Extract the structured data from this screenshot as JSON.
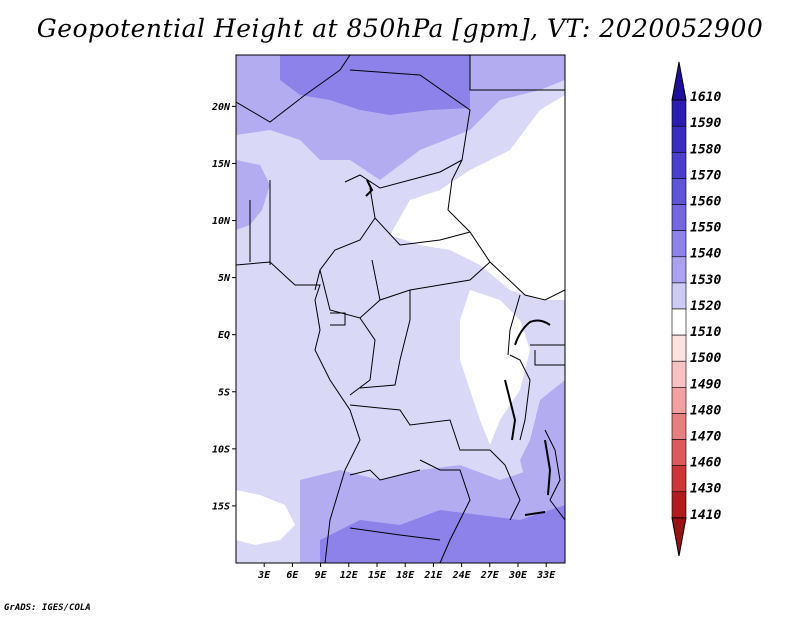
{
  "title": "Geopotential Height at 850hPa [gpm], VT: 2020052900",
  "credit": "GrADS: IGES/COLA",
  "map": {
    "lat_labels": [
      {
        "lat": 20,
        "text": "20N"
      },
      {
        "lat": 15,
        "text": "15N"
      },
      {
        "lat": 10,
        "text": "10N"
      },
      {
        "lat": 5,
        "text": "5N"
      },
      {
        "lat": 0,
        "text": "EQ"
      },
      {
        "lat": -5,
        "text": "5S"
      },
      {
        "lat": -10,
        "text": "10S"
      },
      {
        "lat": -15,
        "text": "15S"
      }
    ],
    "lon_labels": [
      {
        "lon": 3,
        "text": "3E"
      },
      {
        "lon": 6,
        "text": "6E"
      },
      {
        "lon": 9,
        "text": "9E"
      },
      {
        "lon": 12,
        "text": "12E"
      },
      {
        "lon": 15,
        "text": "15E"
      },
      {
        "lon": 18,
        "text": "18E"
      },
      {
        "lon": 21,
        "text": "21E"
      },
      {
        "lon": 24,
        "text": "24E"
      },
      {
        "lon": 27,
        "text": "27E"
      },
      {
        "lon": 30,
        "text": "30E"
      },
      {
        "lon": 33,
        "text": "33E"
      }
    ]
  },
  "colorbar": {
    "labels": [
      "1610",
      "1590",
      "1580",
      "1570",
      "1560",
      "1550",
      "1540",
      "1530",
      "1520",
      "1510",
      "1500",
      "1490",
      "1480",
      "1470",
      "1460",
      "1430",
      "1410"
    ],
    "colors": [
      "#1e0fa0",
      "#2a1db0",
      "#3a2dc0",
      "#4a3ecc",
      "#5e54d8",
      "#7468e2",
      "#8c82ea",
      "#aaa2f0",
      "#cdcaf6",
      "#ffffff",
      "#fde2e2",
      "#f9c2c2",
      "#f2a0a0",
      "#e87e7e",
      "#dd5a5a",
      "#cc3636",
      "#b01c1c",
      "#9a1212"
    ]
  },
  "colors": {
    "base": "#d9d9f7",
    "light": "#ffffff",
    "mid": "#b3acf1",
    "dark": "#8c82ea",
    "darker": "#7468e2"
  }
}
